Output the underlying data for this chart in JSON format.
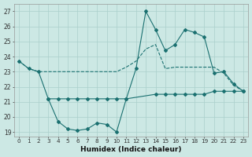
{
  "bg_color": "#cce8e4",
  "grid_color": "#aacfcb",
  "line_color": "#1a7070",
  "xlabel": "Humidex (Indice chaleur)",
  "xlim": [
    -0.5,
    23.5
  ],
  "ylim": [
    18.7,
    27.5
  ],
  "yticks": [
    19,
    20,
    21,
    22,
    23,
    24,
    25,
    26,
    27
  ],
  "xticks": [
    0,
    1,
    2,
    3,
    4,
    5,
    6,
    7,
    8,
    9,
    10,
    11,
    12,
    13,
    14,
    15,
    16,
    17,
    18,
    19,
    20,
    21,
    22,
    23
  ],
  "curve1_x": [
    0,
    1,
    2,
    3,
    4,
    5,
    6,
    7,
    8,
    9,
    10,
    11,
    12,
    13,
    14,
    15,
    16,
    17,
    18,
    19,
    20,
    21,
    22,
    23
  ],
  "curve1_y": [
    23.7,
    23.2,
    23.0,
    23.0,
    23.0,
    23.0,
    23.0,
    23.0,
    23.0,
    23.0,
    23.0,
    23.3,
    23.7,
    24.5,
    24.8,
    23.2,
    23.3,
    23.3,
    23.3,
    23.3,
    23.3,
    22.9,
    22.1,
    21.7
  ],
  "curve2_x": [
    0,
    1,
    2,
    3,
    4,
    5,
    6,
    7,
    8,
    9,
    10,
    11,
    12,
    13,
    14,
    15,
    16,
    17,
    18,
    19,
    20,
    21,
    22,
    23
  ],
  "curve2_y": [
    23.7,
    23.2,
    23.0,
    21.2,
    19.7,
    19.2,
    19.1,
    19.2,
    19.6,
    19.5,
    19.0,
    21.2,
    23.2,
    27.0,
    25.8,
    24.4,
    24.8,
    25.8,
    25.6,
    25.3,
    22.9,
    23.0,
    22.2,
    21.7
  ],
  "curve3_x": [
    3,
    4,
    5,
    6,
    7,
    8,
    9,
    10,
    11,
    14,
    15,
    16,
    17,
    18,
    19,
    20,
    21,
    22,
    23
  ],
  "curve3_y": [
    21.2,
    21.2,
    21.2,
    21.2,
    21.2,
    21.2,
    21.2,
    21.2,
    21.2,
    21.5,
    21.5,
    21.5,
    21.5,
    21.5,
    21.5,
    21.7,
    21.7,
    21.7,
    21.7
  ]
}
